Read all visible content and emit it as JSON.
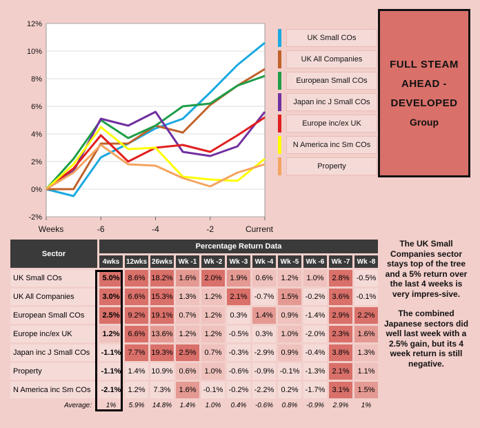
{
  "chart_data": {
    "type": "line",
    "x": [
      "Weeks",
      "-7",
      "-6",
      "-5",
      "-4",
      "-3",
      "-2",
      "-1",
      "Current"
    ],
    "x_tick_labels": [
      "Weeks",
      "-6",
      "-4",
      "-2",
      "Current"
    ],
    "y_tick_labels": [
      "-2%",
      "0%",
      "2%",
      "4%",
      "6%",
      "8%",
      "10%",
      "12%"
    ],
    "ylim": [
      -2,
      12
    ],
    "series": [
      {
        "name": "UK Small COs",
        "color": "#1aa9e0",
        "values": [
          0,
          -0.5,
          2.3,
          3.3,
          4.4,
          5.1,
          7.0,
          9.0,
          10.6
        ]
      },
      {
        "name": "UK All Companies",
        "color": "#c0612a",
        "values": [
          0,
          0,
          3.3,
          3.3,
          4.6,
          4.1,
          6.1,
          7.5,
          8.7
        ]
      },
      {
        "name": "European Small COs",
        "color": "#1e9e48",
        "values": [
          0,
          2.2,
          5.0,
          3.7,
          4.6,
          6.0,
          6.2,
          7.5,
          8.2
        ]
      },
      {
        "name": "Japan inc J Small COs",
        "color": "#7030a0",
        "values": [
          0,
          1.3,
          5.1,
          4.6,
          5.6,
          2.7,
          2.4,
          3.1,
          5.6
        ]
      },
      {
        "name": "Europe inc/ex UK",
        "color": "#e11f1f",
        "values": [
          0,
          1.5,
          3.9,
          2.0,
          3.0,
          3.2,
          2.7,
          3.9,
          5.2
        ]
      },
      {
        "name": "N America inc Sm COs",
        "color": "#ffff00",
        "values": [
          0,
          1.8,
          4.5,
          2.9,
          3.0,
          0.9,
          0.7,
          0.6,
          2.2
        ]
      },
      {
        "name": "Property",
        "color": "#f4a460",
        "values": [
          0,
          1.2,
          3.2,
          1.8,
          1.7,
          0.8,
          0.2,
          1.2,
          1.8
        ]
      }
    ]
  },
  "callout": {
    "line1": "FULL STEAM",
    "line2": "AHEAD -",
    "line3": "DEVELOPED",
    "line4": "Group"
  },
  "table": {
    "sector_header": "Sector",
    "group_header": "Percentage Return Data",
    "columns": [
      "4wks",
      "12wks",
      "26wks",
      "Wk -1",
      "Wk -2",
      "Wk -3",
      "Wk -4",
      "Wk -5",
      "Wk -6",
      "Wk -7",
      "Wk -8"
    ],
    "rows": [
      {
        "sector": "UK Small COs",
        "values": [
          "5.0%",
          "8.6%",
          "18.2%",
          "1.6%",
          "2.0%",
          "1.9%",
          "0.6%",
          "1.2%",
          "1.0%",
          "2.8%",
          "-0.5%"
        ]
      },
      {
        "sector": "UK All Companies",
        "values": [
          "3.0%",
          "6.6%",
          "15.3%",
          "1.3%",
          "1.2%",
          "2.1%",
          "-0.7%",
          "1.5%",
          "-0.2%",
          "3.6%",
          "-0.1%"
        ]
      },
      {
        "sector": "European Small COs",
        "values": [
          "2.5%",
          "9.2%",
          "19.1%",
          "0.7%",
          "1.2%",
          "0.3%",
          "1.4%",
          "0.9%",
          "-1.4%",
          "2.9%",
          "2.2%"
        ]
      },
      {
        "sector": "Europe inc/ex UK",
        "values": [
          "1.2%",
          "6.6%",
          "13.6%",
          "1.2%",
          "1.2%",
          "-0.5%",
          "0.3%",
          "1.0%",
          "-2.0%",
          "2.3%",
          "1.6%"
        ]
      },
      {
        "sector": "Japan inc J Small COs",
        "values": [
          "-1.1%",
          "7.7%",
          "19.3%",
          "2.5%",
          "0.7%",
          "-0.3%",
          "-2.9%",
          "0.9%",
          "-0.4%",
          "3.8%",
          "1.3%"
        ]
      },
      {
        "sector": "Property",
        "values": [
          "-1.1%",
          "1.4%",
          "10.9%",
          "0.6%",
          "1.0%",
          "-0.6%",
          "-0.9%",
          "-0.1%",
          "-1.3%",
          "2.1%",
          "1.1%"
        ]
      },
      {
        "sector": "N America inc Sm COs",
        "values": [
          "-2.1%",
          "1.2%",
          "7.3%",
          "1.6%",
          "-0.1%",
          "-0.2%",
          "-2.2%",
          "0.2%",
          "-1.7%",
          "3.1%",
          "1.5%"
        ]
      }
    ],
    "average_label": "Average:",
    "averages": [
      "1%",
      "5.9%",
      "14.8%",
      "1.4%",
      "1.0%",
      "0.4%",
      "-0.6%",
      "0.8%",
      "-0.9%",
      "2.9%",
      "1%"
    ]
  },
  "side_text": {
    "para1": "The UK Small Companies sector stays top of the tree and a 5% return over the last 4 weeks is very impres-sive.",
    "para2": "The combined Japanese sectors did well last week with a 2.5% gain, but its 4 week return is still negative."
  }
}
